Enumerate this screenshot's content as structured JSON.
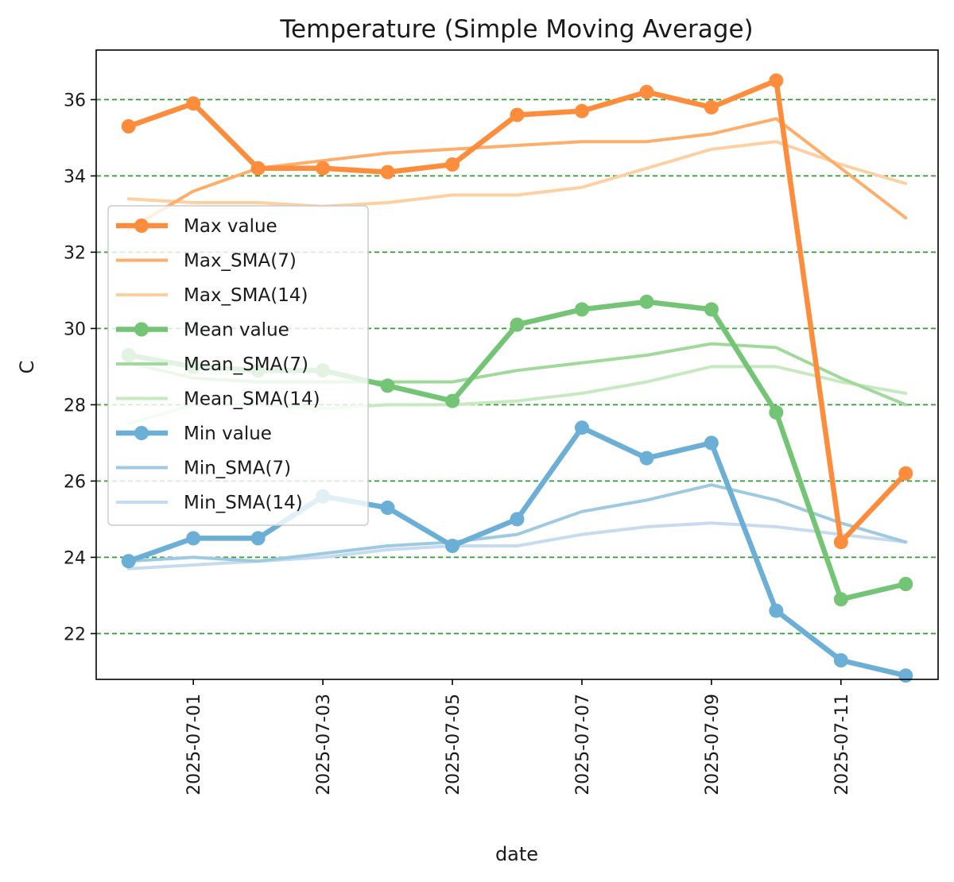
{
  "chart_data": {
    "type": "line",
    "title": "Temperature (Simple Moving Average)",
    "xlabel": "date",
    "ylabel": "C",
    "x": [
      "2025-06-30",
      "2025-07-01",
      "2025-07-02",
      "2025-07-03",
      "2025-07-04",
      "2025-07-05",
      "2025-07-06",
      "2025-07-07",
      "2025-07-08",
      "2025-07-09",
      "2025-07-10",
      "2025-07-11",
      "2025-07-12"
    ],
    "x_ticks": [
      "2025-07-01",
      "2025-07-03",
      "2025-07-05",
      "2025-07-07",
      "2025-07-09",
      "2025-07-11"
    ],
    "xlim": [
      "2025-06-29T12:00",
      "2025-07-12T12:00"
    ],
    "y_ticks": [
      "22",
      "24",
      "26",
      "28",
      "30",
      "32",
      "34",
      "36"
    ],
    "ylim": [
      20.8,
      37.3
    ],
    "grid": "horizontal, dashed, green",
    "grid_color": "#2ca02c",
    "legend_position": "center-left",
    "series": [
      {
        "name": "Max value",
        "color": "#fd8d3c",
        "width": 6.5,
        "markers": true,
        "values": [
          35.3,
          35.9,
          34.2,
          34.2,
          34.1,
          34.3,
          35.6,
          35.7,
          36.2,
          35.8,
          36.5,
          24.4,
          26.2
        ]
      },
      {
        "name": "Max_SMA(7)",
        "color": "#fdae6b",
        "width": 4,
        "markers": false,
        "values": [
          32.6,
          33.6,
          34.2,
          34.4,
          34.6,
          34.7,
          34.8,
          34.9,
          34.9,
          35.1,
          35.5,
          34.2,
          32.9
        ]
      },
      {
        "name": "Max_SMA(14)",
        "color": "#fdd0a2",
        "width": 4,
        "markers": false,
        "values": [
          33.4,
          33.3,
          33.3,
          33.2,
          33.3,
          33.5,
          33.5,
          33.7,
          34.2,
          34.7,
          34.9,
          34.3,
          33.8
        ]
      },
      {
        "name": "Mean value",
        "color": "#74c476",
        "width": 6.5,
        "markers": true,
        "values": [
          29.3,
          29.0,
          28.9,
          28.9,
          28.5,
          28.1,
          30.1,
          30.5,
          30.7,
          30.5,
          27.8,
          22.9,
          23.3
        ]
      },
      {
        "name": "Mean_SMA(7)",
        "color": "#a1d99b",
        "width": 4,
        "markers": false,
        "values": [
          29.1,
          28.7,
          28.6,
          28.6,
          28.6,
          28.6,
          28.9,
          29.1,
          29.3,
          29.6,
          29.5,
          28.7,
          28.0
        ]
      },
      {
        "name": "Mean_SMA(14)",
        "color": "#c7e9c0",
        "width": 4,
        "markers": false,
        "values": [
          27.5,
          28.0,
          28.0,
          27.9,
          28.0,
          28.0,
          28.1,
          28.3,
          28.6,
          29.0,
          29.0,
          28.6,
          28.3
        ]
      },
      {
        "name": "Min value",
        "color": "#6baed6",
        "width": 6.5,
        "markers": true,
        "values": [
          23.9,
          24.5,
          24.5,
          25.6,
          25.3,
          24.3,
          25.0,
          27.4,
          26.6,
          27.0,
          22.6,
          21.3,
          20.9
        ]
      },
      {
        "name": "Min_SMA(7)",
        "color": "#9ecae1",
        "width": 4,
        "markers": false,
        "values": [
          23.9,
          24.0,
          23.9,
          24.1,
          24.3,
          24.4,
          24.6,
          25.2,
          25.5,
          25.9,
          25.5,
          24.9,
          24.4
        ]
      },
      {
        "name": "Min_SMA(14)",
        "color": "#c6dbef",
        "width": 4,
        "markers": false,
        "values": [
          23.7,
          23.8,
          23.9,
          24.0,
          24.2,
          24.3,
          24.3,
          24.6,
          24.8,
          24.9,
          24.8,
          24.6,
          24.4
        ]
      }
    ]
  }
}
